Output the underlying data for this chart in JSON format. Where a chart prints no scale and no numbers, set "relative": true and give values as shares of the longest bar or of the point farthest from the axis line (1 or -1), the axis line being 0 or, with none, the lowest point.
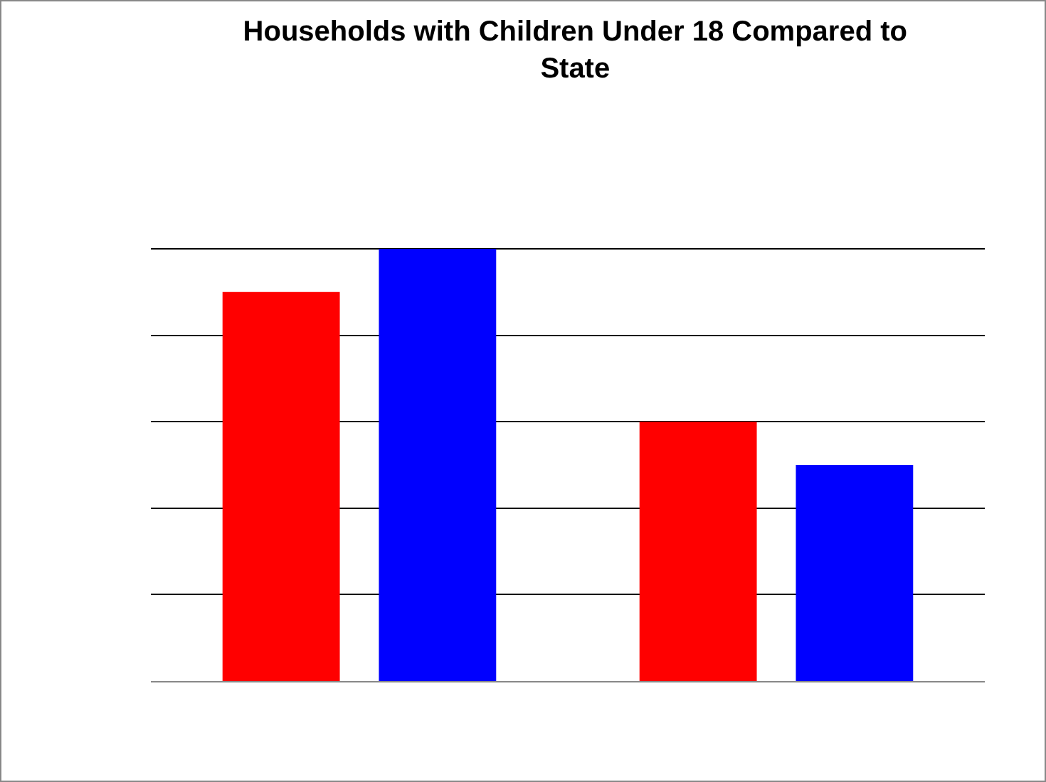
{
  "chart_data": {
    "type": "bar",
    "title": "Households with Children Under 18 Compared to State",
    "categories": [
      null,
      null
    ],
    "relative": true,
    "series": [
      {
        "color": "#ff0000",
        "values": [
          0.9,
          0.6
        ]
      },
      {
        "color": "#0000ff",
        "values": [
          1,
          0.5
        ]
      }
    ],
    "grid": "y"
  }
}
